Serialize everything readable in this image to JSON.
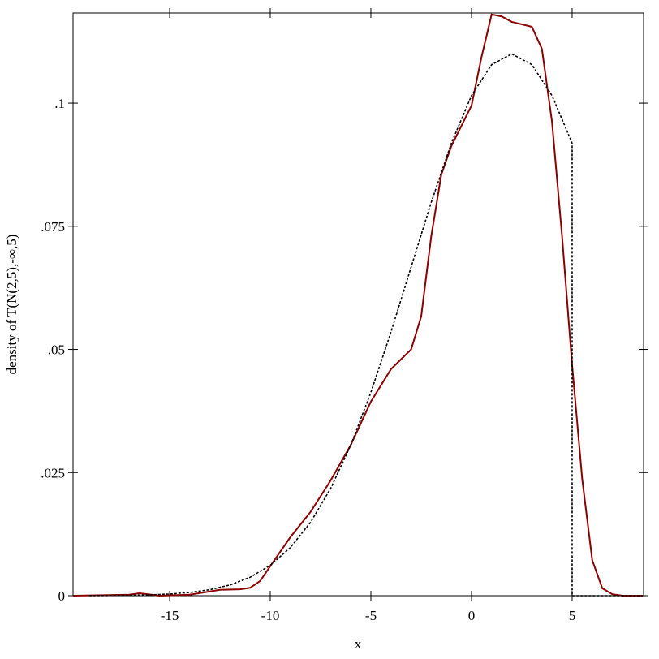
{
  "chart_data": {
    "type": "line",
    "xlabel": "x",
    "ylabel": "density of T(N(2,5),-∞,5)",
    "xlim": [
      -19.8,
      8.55
    ],
    "ylim": [
      0,
      0.1183
    ],
    "xticks": [
      -15,
      -10,
      -5,
      0,
      5
    ],
    "yticks": [
      0,
      {
        "value": 0.025,
        "label": ".025"
      },
      {
        "value": 0.05,
        "label": ".05"
      },
      {
        "value": 0.075,
        "label": ".075"
      },
      {
        "value": 0.1,
        "label": ".1"
      }
    ],
    "series": [
      {
        "color": "#8b0000",
        "dash": false,
        "x": [
          -19.8,
          -17,
          -16.5,
          -15.5,
          -14,
          -12.5,
          -11.5,
          -11,
          -10.5,
          -10,
          -9,
          -8,
          -7,
          -6,
          -5,
          -4,
          -3,
          -2.5,
          -2,
          -1.5,
          -1,
          0,
          0.5,
          1,
          1.5,
          2,
          3,
          3.5,
          4,
          4.5,
          5,
          5.5,
          6,
          6.5,
          7,
          7.5,
          8.5
        ],
        "values": [
          0,
          0.0002,
          0.0005,
          0,
          0.0002,
          0.0012,
          0.0013,
          0.0016,
          0.003,
          0.006,
          0.0119,
          0.017,
          0.0234,
          0.0306,
          0.0394,
          0.046,
          0.05,
          0.0567,
          0.073,
          0.0855,
          0.0913,
          0.0995,
          0.1094,
          0.118,
          0.1176,
          0.1165,
          0.1155,
          0.111,
          0.0962,
          0.073,
          0.0468,
          0.0237,
          0.0072,
          0.0015,
          0.0003,
          0,
          0
        ]
      },
      {
        "color": "#000000",
        "dash": true,
        "x": [
          -19,
          -18,
          -17,
          -16,
          -15,
          -14,
          -13,
          -12,
          -11,
          -10,
          -9,
          -8,
          -7,
          -6,
          -5,
          -4,
          -3,
          -2,
          -1,
          0,
          1,
          2,
          3,
          4,
          5,
          5,
          8.5
        ],
        "values": [
          2e-05,
          4e-05,
          8e-05,
          0.00017,
          0.00034,
          0.00066,
          0.00122,
          0.00218,
          0.00374,
          0.00617,
          0.00978,
          0.01489,
          0.02177,
          0.03058,
          0.04128,
          0.05355,
          0.06672,
          0.07987,
          0.09188,
          0.10154,
          0.10782,
          0.11,
          0.10782,
          0.10154,
          0.09188,
          0,
          0
        ]
      }
    ]
  }
}
